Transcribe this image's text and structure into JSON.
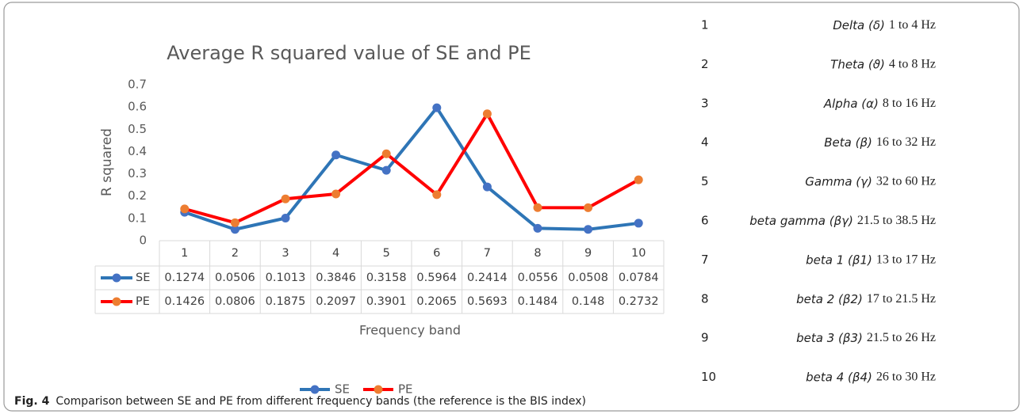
{
  "chart_data": {
    "type": "line",
    "title": "Average R squared value of SE and PE",
    "y_label": "R squared",
    "x_label": "Frequency band",
    "categories": [
      "1",
      "2",
      "3",
      "4",
      "5",
      "6",
      "7",
      "8",
      "9",
      "10"
    ],
    "series": [
      {
        "name": "SE",
        "color": "#2e75b6",
        "marker_color": "#4472c4",
        "values": [
          0.1274,
          0.0506,
          0.1013,
          0.3846,
          0.3158,
          0.5964,
          0.2414,
          0.0556,
          0.0508,
          0.0784
        ]
      },
      {
        "name": "PE",
        "color": "#ff0000",
        "marker_color": "#ed7d31",
        "values": [
          0.1426,
          0.0806,
          0.1875,
          0.2097,
          0.3901,
          0.2065,
          0.5693,
          0.1484,
          0.148,
          0.2732
        ]
      }
    ],
    "ylim": [
      0,
      0.7
    ],
    "yticks": [
      0,
      0.1,
      0.2,
      0.3,
      0.4,
      0.5,
      0.6,
      0.7
    ],
    "grid": false,
    "legend": "bottom"
  },
  "bands": [
    {
      "number": "1",
      "name": "Delta (δ)",
      "range": "1 to 4 Hz"
    },
    {
      "number": "2",
      "name": "Theta (ϑ)",
      "range": "4 to 8 Hz"
    },
    {
      "number": "3",
      "name": "Alpha (α)",
      "range": "8 to 16 Hz"
    },
    {
      "number": "4",
      "name": "Beta (β)",
      "range": "16 to 32 Hz"
    },
    {
      "number": "5",
      "name": "Gamma (γ)",
      "range": "32 to 60 Hz"
    },
    {
      "number": "6",
      "name": "beta gamma (βγ)",
      "range": "21.5 to 38.5 Hz"
    },
    {
      "number": "7",
      "name": "beta 1 (β1)",
      "range": "13 to 17 Hz"
    },
    {
      "number": "8",
      "name": "beta 2 (β2)",
      "range": "17 to 21.5 Hz"
    },
    {
      "number": "9",
      "name": "beta 3 (β3)",
      "range": "21.5 to 26 Hz"
    },
    {
      "number": "10",
      "name": "beta 4 (β4)",
      "range": "26 to 30 Hz"
    }
  ],
  "caption": {
    "label": "Fig. 4",
    "text": "Comparison between SE and PE from different frequency bands (the reference is the BIS index)"
  }
}
